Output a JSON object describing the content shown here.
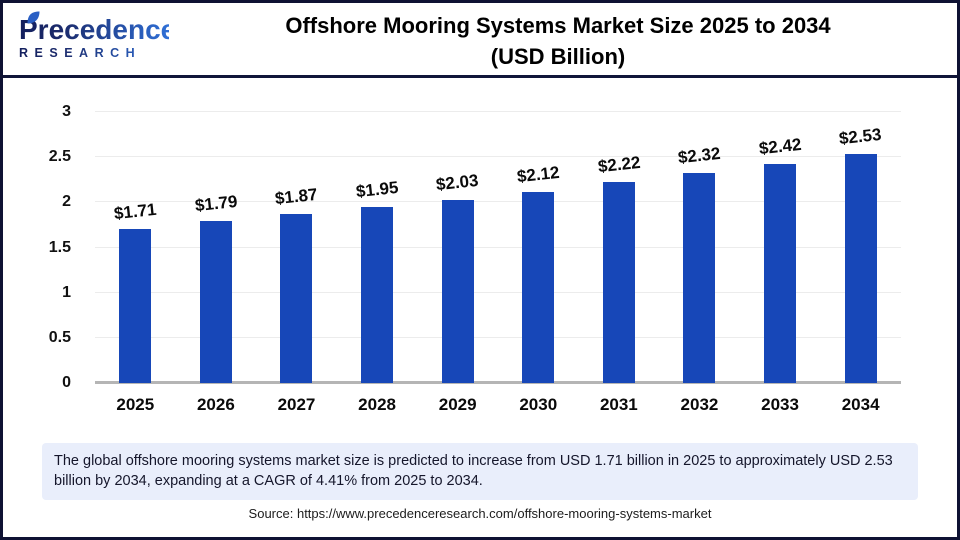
{
  "header": {
    "logo": {
      "name": "Precedence",
      "sub": "RESEARCH"
    },
    "title_line1": "Offshore Mooring Systems Market Size 2025 to 2034",
    "title_line2": "(USD Billion)"
  },
  "chart_data": {
    "type": "bar",
    "title": "Offshore Mooring Systems Market Size 2025 to 2034 (USD Billion)",
    "categories": [
      "2025",
      "2026",
      "2027",
      "2028",
      "2029",
      "2030",
      "2031",
      "2032",
      "2033",
      "2034"
    ],
    "values": [
      1.71,
      1.79,
      1.87,
      1.95,
      2.03,
      2.12,
      2.22,
      2.32,
      2.42,
      2.53
    ],
    "value_labels": [
      "$1.71",
      "$1.79",
      "$1.87",
      "$1.95",
      "$2.03",
      "$2.12",
      "$2.22",
      "$2.32",
      "$2.42",
      "$2.53"
    ],
    "xlabel": "",
    "ylabel": "",
    "ylim": [
      0,
      3
    ],
    "yticks": [
      "0",
      "0.5",
      "1",
      "1.5",
      "2",
      "2.5",
      "3"
    ],
    "grid": true,
    "legend": "none",
    "bar_color": "#1747b8"
  },
  "note": {
    "text": "The global offshore mooring systems market size is predicted to increase from USD 1.71 billion in 2025 to approximately USD 2.53 billion by 2034, expanding at a CAGR of 4.41% from 2025 to 2034."
  },
  "source": {
    "text": "Source: https://www.precedenceresearch.com/offshore-mooring-systems-market"
  },
  "colors": {
    "bar": "#1747b8",
    "frame_border": "#0e1233",
    "header_rule": "#101539",
    "note_background": "#e9eefb",
    "gridline": "#ececec",
    "axis_line": "#b5b5b5",
    "logo_navy": "#131f5e",
    "logo_blue": "#2f6fd6"
  }
}
